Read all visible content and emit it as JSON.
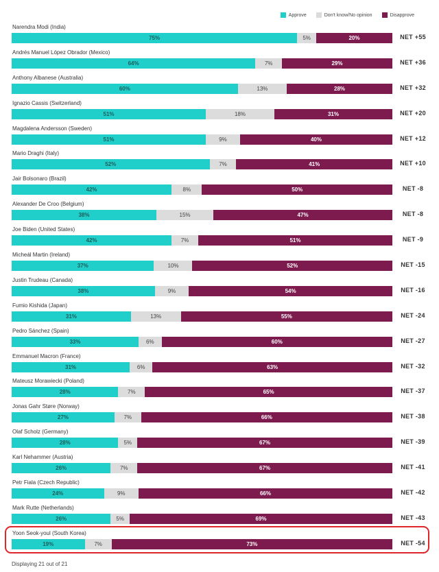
{
  "legend": {
    "approve": "Approve",
    "dk": "Don't know/No opinion",
    "disapprove": "Disapprove"
  },
  "colors": {
    "approve": "#21cfca",
    "dk": "#dcdcdc",
    "disapprove": "#7d1a4e"
  },
  "footer": "Displaying 21 out of 21",
  "chart_data": {
    "type": "bar",
    "stacked": true,
    "orientation": "horizontal",
    "legend_position": "top-right",
    "series_names": [
      "Approve",
      "Don't know/No opinion",
      "Disapprove"
    ],
    "highlighted_row": 20,
    "rows": [
      {
        "label": "Narendra Modi (India)",
        "approve": 75,
        "dk": 5,
        "disapprove": 20,
        "net": "NET +55"
      },
      {
        "label": "Andrés Manuel López Obrador (Mexico)",
        "approve": 64,
        "dk": 7,
        "disapprove": 29,
        "net": "NET +36"
      },
      {
        "label": "Anthony Albanese (Australia)",
        "approve": 60,
        "dk": 13,
        "disapprove": 28,
        "net": "NET +32"
      },
      {
        "label": "Ignazio Cassis (Switzerland)",
        "approve": 51,
        "dk": 18,
        "disapprove": 31,
        "net": "NET +20"
      },
      {
        "label": "Magdalena Andersson (Sweden)",
        "approve": 51,
        "dk": 9,
        "disapprove": 40,
        "net": "NET +12"
      },
      {
        "label": "Mario Draghi (Italy)",
        "approve": 52,
        "dk": 7,
        "disapprove": 41,
        "net": "NET +10"
      },
      {
        "label": "Jair Bolsonaro (Brazil)",
        "approve": 42,
        "dk": 8,
        "disapprove": 50,
        "net": "NET -8"
      },
      {
        "label": "Alexander De Croo (Belgium)",
        "approve": 38,
        "dk": 15,
        "disapprove": 47,
        "net": "NET -8"
      },
      {
        "label": "Joe Biden (United States)",
        "approve": 42,
        "dk": 7,
        "disapprove": 51,
        "net": "NET -9"
      },
      {
        "label": "Micheál Martin (Ireland)",
        "approve": 37,
        "dk": 10,
        "disapprove": 52,
        "net": "NET -15"
      },
      {
        "label": "Justin Trudeau (Canada)",
        "approve": 38,
        "dk": 9,
        "disapprove": 54,
        "net": "NET -16"
      },
      {
        "label": "Fumio Kishida (Japan)",
        "approve": 31,
        "dk": 13,
        "disapprove": 55,
        "net": "NET -24"
      },
      {
        "label": "Pedro Sánchez (Spain)",
        "approve": 33,
        "dk": 6,
        "disapprove": 60,
        "net": "NET -27"
      },
      {
        "label": "Emmanuel Macron (France)",
        "approve": 31,
        "dk": 6,
        "disapprove": 63,
        "net": "NET -32"
      },
      {
        "label": "Mateusz Morawiecki (Poland)",
        "approve": 28,
        "dk": 7,
        "disapprove": 65,
        "net": "NET -37"
      },
      {
        "label": "Jonas Gahr Støre (Norway)",
        "approve": 27,
        "dk": 7,
        "disapprove": 66,
        "net": "NET -38"
      },
      {
        "label": "Olaf Scholz (Germany)",
        "approve": 28,
        "dk": 5,
        "disapprove": 67,
        "net": "NET -39"
      },
      {
        "label": "Karl Nehammer (Austria)",
        "approve": 26,
        "dk": 7,
        "disapprove": 67,
        "net": "NET -41"
      },
      {
        "label": "Petr Fiala (Czech Republic)",
        "approve": 24,
        "dk": 9,
        "disapprove": 66,
        "net": "NET -42"
      },
      {
        "label": "Mark Rutte (Netherlands)",
        "approve": 26,
        "dk": 5,
        "disapprove": 69,
        "net": "NET -43"
      },
      {
        "label": "Yoon Seok-youl (South Korea)",
        "approve": 19,
        "dk": 7,
        "disapprove": 73,
        "net": "NET -54"
      }
    ]
  }
}
